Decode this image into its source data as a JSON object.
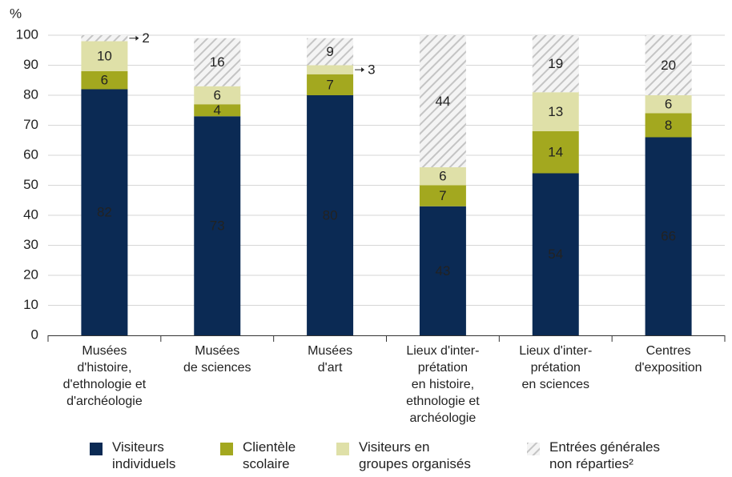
{
  "chart_data": {
    "type": "bar",
    "stacked": true,
    "y_label": "%",
    "categories": [
      "Musées\nd'histoire,\nd'ethnologie et\nd'archéologie",
      "Musées\nde sciences",
      "Musées\nd'art",
      "Lieux d'inter-\nprétation\nen histoire,\nethnologie et\narchéologie",
      "Lieux d'inter-\nprétation\nen sciences",
      "Centres\nd'exposition"
    ],
    "series": [
      {
        "name": "Visiteurs\nindividuels",
        "color": "#0b2a54",
        "values": [
          82,
          73,
          80,
          43,
          54,
          66
        ]
      },
      {
        "name": "Clientèle\nscolaire",
        "color": "#a3a81f",
        "values": [
          6,
          4,
          7,
          7,
          14,
          8
        ]
      },
      {
        "name": "Visiteurs en\ngroupes organisés",
        "color": "#dfe0a8",
        "values": [
          10,
          6,
          3,
          6,
          13,
          6
        ]
      },
      {
        "name": "Entrées générales\nnon réparties²",
        "color": "#c4c4c4",
        "hatched": true,
        "values": [
          2,
          16,
          9,
          44,
          19,
          20
        ]
      }
    ],
    "ylim": [
      0,
      100
    ],
    "yticks": [
      0,
      10,
      20,
      30,
      40,
      50,
      60,
      70,
      80,
      90,
      100
    ],
    "grid": true
  }
}
